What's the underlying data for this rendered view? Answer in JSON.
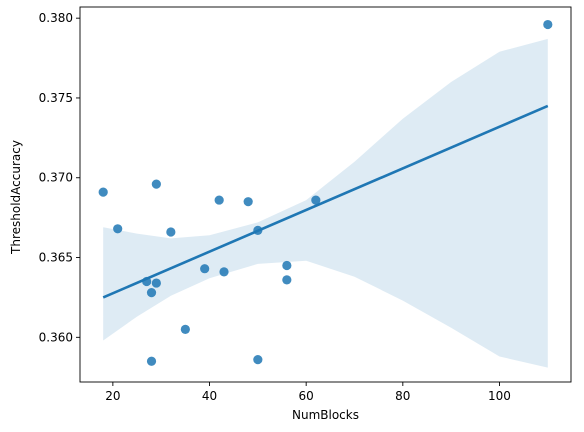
{
  "chart_data": {
    "type": "scatter",
    "title": "",
    "xlabel": "NumBlocks",
    "ylabel": "ThresholdAccuracy",
    "xlim": [
      13.2,
      114.8
    ],
    "ylim": [
      0.3572,
      0.3807
    ],
    "xticks": [
      20,
      40,
      60,
      80,
      100
    ],
    "xtick_labels": [
      "20",
      "40",
      "60",
      "80",
      "100"
    ],
    "yticks": [
      0.36,
      0.365,
      0.37,
      0.375,
      0.38
    ],
    "ytick_labels": [
      "0.360",
      "0.365",
      "0.370",
      "0.375",
      "0.380"
    ],
    "grid": false,
    "legend": "none",
    "points": [
      {
        "x": 18,
        "y": 0.3691
      },
      {
        "x": 21,
        "y": 0.3668
      },
      {
        "x": 27,
        "y": 0.3635
      },
      {
        "x": 28,
        "y": 0.3628
      },
      {
        "x": 28,
        "y": 0.3585
      },
      {
        "x": 29,
        "y": 0.3696
      },
      {
        "x": 29,
        "y": 0.3634
      },
      {
        "x": 32,
        "y": 0.3666
      },
      {
        "x": 35,
        "y": 0.3605
      },
      {
        "x": 39,
        "y": 0.3643
      },
      {
        "x": 42,
        "y": 0.3686
      },
      {
        "x": 43,
        "y": 0.3641
      },
      {
        "x": 48,
        "y": 0.3685
      },
      {
        "x": 50,
        "y": 0.3667
      },
      {
        "x": 50,
        "y": 0.3586
      },
      {
        "x": 56,
        "y": 0.3645
      },
      {
        "x": 56,
        "y": 0.3636
      },
      {
        "x": 62,
        "y": 0.3686
      },
      {
        "x": 110,
        "y": 0.3796
      }
    ],
    "regression_line": {
      "x": [
        18,
        110
      ],
      "y": [
        0.3625,
        0.3745
      ]
    },
    "confidence_band": {
      "x": [
        18,
        25,
        32,
        40,
        50,
        60,
        70,
        80,
        90,
        100,
        110
      ],
      "lower": [
        0.3598,
        0.3613,
        0.3626,
        0.3637,
        0.3646,
        0.3648,
        0.3638,
        0.3623,
        0.3606,
        0.3588,
        0.3581
      ],
      "upper": [
        0.3669,
        0.3665,
        0.3662,
        0.3664,
        0.3672,
        0.3686,
        0.371,
        0.3737,
        0.376,
        0.3779,
        0.3787
      ]
    },
    "colors": {
      "points": "#1f77b4",
      "line": "#1f77b4",
      "band": "#1f77b4",
      "axis": "#000000"
    }
  }
}
